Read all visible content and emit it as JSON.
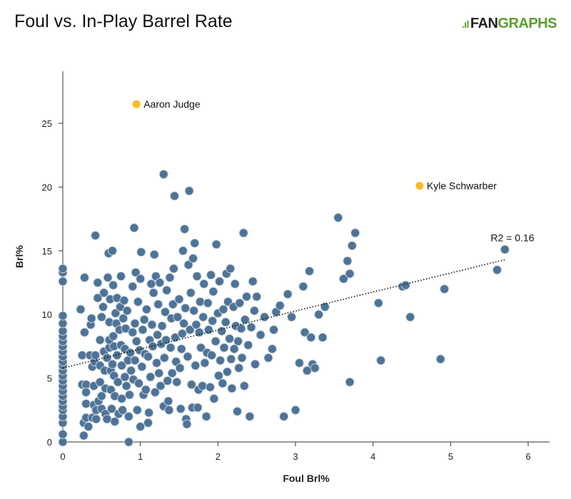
{
  "header": {
    "title": "Foul vs. In-Play Barrel Rate"
  },
  "logo": {
    "prefix": ".ıl",
    "fan": "FAN",
    "graphs": "GRAPHS"
  },
  "chart_data": {
    "type": "scatter",
    "title": "Foul vs. In-Play Barrel Rate",
    "xlabel": "Foul Brl%",
    "ylabel": "Brl%",
    "xlim": [
      0,
      6.3
    ],
    "ylim": [
      0,
      27
    ],
    "xticks": [
      0,
      1,
      2,
      3,
      4,
      5,
      6
    ],
    "yticks": [
      0,
      5,
      10,
      15,
      20,
      25
    ],
    "grid": false,
    "colors": {
      "point": "#4e7396",
      "point_edge": "#c8d4e0",
      "highlight": "#f5bd1f",
      "trend": "#111111"
    },
    "highlights": [
      {
        "name": "Aaron Judge",
        "x": 0.95,
        "y": 26.5
      },
      {
        "name": "Kyle Schwarber",
        "x": 4.6,
        "y": 20.1
      }
    ],
    "trendline": {
      "label": "R2 = 0.16",
      "x": [
        0,
        5.7
      ],
      "y": [
        5.8,
        14.3
      ]
    },
    "points": [
      [
        0,
        0
      ],
      [
        0,
        0.6
      ],
      [
        0,
        1.5
      ],
      [
        0,
        2.0
      ],
      [
        0,
        2.5
      ],
      [
        0,
        2.8
      ],
      [
        0,
        3.2
      ],
      [
        0,
        3.6
      ],
      [
        0,
        4.0
      ],
      [
        0,
        4.4
      ],
      [
        0,
        4.8
      ],
      [
        0,
        5.2
      ],
      [
        0,
        5.6
      ],
      [
        0,
        6.0
      ],
      [
        0,
        6.3
      ],
      [
        0,
        6.7
      ],
      [
        0,
        7.1
      ],
      [
        0,
        7.5
      ],
      [
        0,
        7.9
      ],
      [
        0,
        8.3
      ],
      [
        0,
        8.7
      ],
      [
        0,
        9.3
      ],
      [
        0,
        9.9
      ],
      [
        0,
        12.6
      ],
      [
        0,
        13.3
      ],
      [
        0,
        13.6
      ],
      [
        0.23,
        10.4
      ],
      [
        0.25,
        4.5
      ],
      [
        0.25,
        6.8
      ],
      [
        0.27,
        1.5
      ],
      [
        0.27,
        0.5
      ],
      [
        0.28,
        8.6
      ],
      [
        0.28,
        12.9
      ],
      [
        0.3,
        1.9
      ],
      [
        0.3,
        4.5
      ],
      [
        0.3,
        3.9
      ],
      [
        0.3,
        3.0
      ],
      [
        0.33,
        1.2
      ],
      [
        0.35,
        6.8
      ],
      [
        0.36,
        9.2
      ],
      [
        0.37,
        9.7
      ],
      [
        0.38,
        1.9
      ],
      [
        0.38,
        5.9
      ],
      [
        0.4,
        2.9
      ],
      [
        0.4,
        4.4
      ],
      [
        0.41,
        6.3
      ],
      [
        0.42,
        16.2
      ],
      [
        0.42,
        6.8
      ],
      [
        0.43,
        2.5
      ],
      [
        0.43,
        1.8
      ],
      [
        0.45,
        11.3
      ],
      [
        0.45,
        12.5
      ],
      [
        0.46,
        3.2
      ],
      [
        0.48,
        4.7
      ],
      [
        0.48,
        6.0
      ],
      [
        0.48,
        8.0
      ],
      [
        0.5,
        2.6
      ],
      [
        0.5,
        3.6
      ],
      [
        0.5,
        9.8
      ],
      [
        0.52,
        10.6
      ],
      [
        0.53,
        11.7
      ],
      [
        0.53,
        7.1
      ],
      [
        0.54,
        5.6
      ],
      [
        0.55,
        4.2
      ],
      [
        0.55,
        2.2
      ],
      [
        0.57,
        1.8
      ],
      [
        0.57,
        6.6
      ],
      [
        0.58,
        12.9
      ],
      [
        0.59,
        14.8
      ],
      [
        0.6,
        7.4
      ],
      [
        0.6,
        8.0
      ],
      [
        0.6,
        9.4
      ],
      [
        0.61,
        11.2
      ],
      [
        0.62,
        5.6
      ],
      [
        0.62,
        4.1
      ],
      [
        0.63,
        2.6
      ],
      [
        0.64,
        6.1
      ],
      [
        0.64,
        15.0
      ],
      [
        0.65,
        12.3
      ],
      [
        0.65,
        8.3
      ],
      [
        0.66,
        7.5
      ],
      [
        0.66,
        5.2
      ],
      [
        0.67,
        3.6
      ],
      [
        0.67,
        1.6
      ],
      [
        0.68,
        10.1
      ],
      [
        0.69,
        9.3
      ],
      [
        0.7,
        11.3
      ],
      [
        0.7,
        6.8
      ],
      [
        0.71,
        4.7
      ],
      [
        0.72,
        2.2
      ],
      [
        0.73,
        8.8
      ],
      [
        0.74,
        10.6
      ],
      [
        0.75,
        7.6
      ],
      [
        0.75,
        13.0
      ],
      [
        0.76,
        6.0
      ],
      [
        0.76,
        3.4
      ],
      [
        0.77,
        2.5
      ],
      [
        0.78,
        9.7
      ],
      [
        0.79,
        11.1
      ],
      [
        0.8,
        5.1
      ],
      [
        0.8,
        7.3
      ],
      [
        0.81,
        8.9
      ],
      [
        0.82,
        4.4
      ],
      [
        0.83,
        10.3
      ],
      [
        0.84,
        6.4
      ],
      [
        0.85,
        2.0
      ],
      [
        0.85,
        0
      ],
      [
        0.86,
        3.7
      ],
      [
        0.87,
        7.0
      ],
      [
        0.88,
        5.6
      ],
      [
        0.9,
        12.2
      ],
      [
        0.9,
        8.6
      ],
      [
        0.91,
        4.9
      ],
      [
        0.92,
        16.8
      ],
      [
        0.93,
        6.4
      ],
      [
        0.93,
        9.3
      ],
      [
        0.94,
        13.3
      ],
      [
        0.95,
        7.9
      ],
      [
        0.96,
        2.5
      ],
      [
        0.97,
        11.0
      ],
      [
        0.98,
        4.6
      ],
      [
        0.99,
        7.2
      ],
      [
        1.0,
        12.8
      ],
      [
        1.0,
        1.2
      ],
      [
        1.01,
        14.9
      ],
      [
        1.02,
        5.9
      ],
      [
        1.03,
        8.8
      ],
      [
        1.04,
        3.7
      ],
      [
        1.05,
        9.6
      ],
      [
        1.06,
        6.9
      ],
      [
        1.07,
        4.1
      ],
      [
        1.08,
        10.4
      ],
      [
        1.1,
        1.5
      ],
      [
        1.1,
        6.7
      ],
      [
        1.11,
        2.3
      ],
      [
        1.12,
        8.0
      ],
      [
        1.13,
        5.1
      ],
      [
        1.14,
        12.4
      ],
      [
        1.15,
        9.2
      ],
      [
        1.16,
        7.5
      ],
      [
        1.17,
        11.7
      ],
      [
        1.18,
        14.7
      ],
      [
        1.19,
        3.9
      ],
      [
        1.2,
        13.0
      ],
      [
        1.21,
        6.2
      ],
      [
        1.22,
        8.4
      ],
      [
        1.23,
        10.8
      ],
      [
        1.24,
        5.4
      ],
      [
        1.25,
        12.5
      ],
      [
        1.26,
        4.4
      ],
      [
        1.27,
        7.7
      ],
      [
        1.28,
        9.1
      ],
      [
        1.3,
        21.0
      ],
      [
        1.3,
        2.8
      ],
      [
        1.31,
        6.6
      ],
      [
        1.32,
        10.2
      ],
      [
        1.33,
        8.0
      ],
      [
        1.34,
        11.9
      ],
      [
        1.35,
        4.8
      ],
      [
        1.36,
        3.2
      ],
      [
        1.37,
        2.5
      ],
      [
        1.38,
        12.9
      ],
      [
        1.39,
        7.4
      ],
      [
        1.4,
        9.7
      ],
      [
        1.41,
        5.4
      ],
      [
        1.42,
        10.8
      ],
      [
        1.43,
        13.6
      ],
      [
        1.44,
        19.3
      ],
      [
        1.45,
        8.2
      ],
      [
        1.46,
        6.3
      ],
      [
        1.47,
        4.7
      ],
      [
        1.48,
        9.8
      ],
      [
        1.5,
        11.2
      ],
      [
        1.51,
        5.8
      ],
      [
        1.52,
        2.6
      ],
      [
        1.53,
        7.3
      ],
      [
        1.54,
        8.5
      ],
      [
        1.55,
        15.0
      ],
      [
        1.56,
        9.3
      ],
      [
        1.57,
        16.7
      ],
      [
        1.58,
        10.5
      ],
      [
        1.59,
        1.8
      ],
      [
        1.6,
        1.4
      ],
      [
        1.61,
        6.7
      ],
      [
        1.62,
        13.9
      ],
      [
        1.63,
        19.7
      ],
      [
        1.64,
        8.8
      ],
      [
        1.65,
        11.7
      ],
      [
        1.66,
        4.5
      ],
      [
        1.67,
        2.7
      ],
      [
        1.68,
        14.4
      ],
      [
        1.69,
        10.3
      ],
      [
        1.7,
        15.6
      ],
      [
        1.71,
        6.0
      ],
      [
        1.72,
        9.2
      ],
      [
        1.73,
        13.0
      ],
      [
        1.74,
        2.7
      ],
      [
        1.75,
        4.1
      ],
      [
        1.76,
        8.6
      ],
      [
        1.77,
        11.0
      ],
      [
        1.78,
        7.4
      ],
      [
        1.8,
        4.4
      ],
      [
        1.81,
        9.8
      ],
      [
        1.82,
        12.4
      ],
      [
        1.83,
        6.2
      ],
      [
        1.85,
        2.0
      ],
      [
        1.86,
        7.0
      ],
      [
        1.87,
        10.9
      ],
      [
        1.88,
        8.8
      ],
      [
        1.9,
        4.3
      ],
      [
        1.91,
        13.1
      ],
      [
        1.92,
        6.8
      ],
      [
        1.93,
        9.5
      ],
      [
        1.94,
        11.8
      ],
      [
        1.95,
        3.4
      ],
      [
        1.97,
        7.9
      ],
      [
        1.98,
        15.5
      ],
      [
        2.0,
        10.1
      ],
      [
        2.01,
        5.2
      ],
      [
        2.02,
        12.6
      ],
      [
        2.03,
        6.4
      ],
      [
        2.05,
        8.7
      ],
      [
        2.06,
        4.6
      ],
      [
        2.07,
        10.4
      ],
      [
        2.08,
        7.4
      ],
      [
        2.1,
        9.4
      ],
      [
        2.11,
        13.2
      ],
      [
        2.12,
        5.5
      ],
      [
        2.13,
        11.0
      ],
      [
        2.15,
        8.1
      ],
      [
        2.16,
        13.6
      ],
      [
        2.17,
        6.5
      ],
      [
        2.18,
        4.2
      ],
      [
        2.2,
        10.6
      ],
      [
        2.21,
        7.3
      ],
      [
        2.22,
        12.4
      ],
      [
        2.23,
        9.1
      ],
      [
        2.25,
        2.4
      ],
      [
        2.26,
        7.9
      ],
      [
        2.27,
        5.8
      ],
      [
        2.28,
        10.9
      ],
      [
        2.3,
        8.9
      ],
      [
        2.31,
        6.6
      ],
      [
        2.33,
        16.4
      ],
      [
        2.34,
        4.4
      ],
      [
        2.35,
        9.6
      ],
      [
        2.37,
        11.4
      ],
      [
        2.39,
        7.6
      ],
      [
        2.41,
        2.0
      ],
      [
        2.43,
        9.0
      ],
      [
        2.45,
        12.6
      ],
      [
        2.47,
        10.3
      ],
      [
        2.48,
        6.1
      ],
      [
        2.5,
        11.4
      ],
      [
        2.55,
        8.4
      ],
      [
        2.6,
        9.8
      ],
      [
        2.65,
        6.6
      ],
      [
        2.7,
        7.3
      ],
      [
        2.72,
        8.8
      ],
      [
        2.75,
        10.2
      ],
      [
        2.8,
        10.7
      ],
      [
        2.85,
        2.0
      ],
      [
        2.9,
        11.6
      ],
      [
        2.95,
        9.8
      ],
      [
        3.0,
        2.5
      ],
      [
        3.05,
        6.2
      ],
      [
        3.1,
        12.2
      ],
      [
        3.12,
        8.6
      ],
      [
        3.15,
        5.6
      ],
      [
        3.18,
        13.4
      ],
      [
        3.2,
        8.2
      ],
      [
        3.22,
        6.1
      ],
      [
        3.25,
        5.8
      ],
      [
        3.3,
        10.0
      ],
      [
        3.35,
        8.2
      ],
      [
        3.38,
        10.6
      ],
      [
        3.55,
        17.6
      ],
      [
        3.62,
        12.8
      ],
      [
        3.67,
        14.2
      ],
      [
        3.7,
        4.7
      ],
      [
        3.7,
        13.2
      ],
      [
        3.73,
        15.4
      ],
      [
        3.77,
        16.4
      ],
      [
        4.07,
        10.9
      ],
      [
        4.1,
        6.4
      ],
      [
        4.38,
        12.2
      ],
      [
        4.42,
        12.3
      ],
      [
        4.48,
        9.8
      ],
      [
        4.87,
        6.5
      ],
      [
        4.92,
        12.0
      ],
      [
        5.6,
        13.5
      ],
      [
        5.7,
        15.1
      ]
    ]
  }
}
